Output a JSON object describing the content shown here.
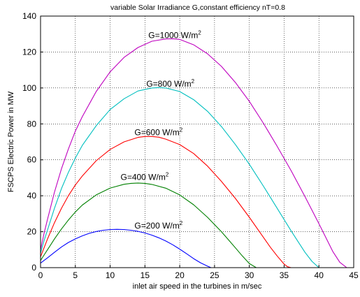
{
  "chart_data": {
    "type": "line",
    "title": "variable Solar Irradiance G,constant efficiency nT=0.8",
    "xlabel": "inlet air speed in the turbines in m/sec",
    "ylabel": "FSCPS Electric Power in MW",
    "xlim": [
      0,
      45
    ],
    "ylim": [
      0,
      140
    ],
    "xticks": [
      0,
      5,
      10,
      15,
      20,
      25,
      30,
      35,
      40,
      45
    ],
    "yticks": [
      0,
      20,
      40,
      60,
      80,
      100,
      120,
      140
    ],
    "xtick_labels": [
      "0",
      "5",
      "10",
      "15",
      "20",
      "25",
      "30",
      "35",
      "40",
      "45"
    ],
    "ytick_labels": [
      "0",
      "20",
      "40",
      "60",
      "80",
      "100",
      "120",
      "140"
    ],
    "grid": true,
    "legend": "none",
    "series": [
      {
        "label": "G=200 W/m",
        "label_sup": "2",
        "color": "#0000ff",
        "label_at": [
          13.5,
          21
        ],
        "x": [
          0,
          0.5,
          1,
          2,
          3,
          4,
          5,
          6,
          7,
          8,
          9,
          10,
          11,
          12,
          13,
          14,
          15,
          16,
          17,
          18,
          19,
          20,
          21,
          22,
          23,
          24,
          24.5
        ],
        "y": [
          2.5,
          4,
          5.5,
          8.5,
          11.5,
          14,
          16,
          17.7,
          19.1,
          20.1,
          20.8,
          21.2,
          21.3,
          21.2,
          20.8,
          20.2,
          19.3,
          18.1,
          16.6,
          14.8,
          12.7,
          10.3,
          7.7,
          5,
          2.7,
          0.8,
          0
        ]
      },
      {
        "label": "G=400 W/m",
        "label_sup": "2",
        "color": "#008000",
        "label_at": [
          11.5,
          48
        ],
        "x": [
          0,
          0.5,
          1,
          2,
          3,
          4,
          5,
          6,
          8,
          10,
          12,
          13,
          14,
          15,
          16,
          18,
          20,
          22,
          24,
          26,
          27,
          28,
          29,
          30,
          31
        ],
        "y": [
          4,
          7,
          10,
          16,
          21.5,
          26.5,
          31,
          34.8,
          40.5,
          44.3,
          46.4,
          46.9,
          47.1,
          46.9,
          46.3,
          44.2,
          40.5,
          35,
          28,
          20,
          15.5,
          11,
          6.5,
          2.3,
          0
        ]
      },
      {
        "label": "G=600 W/m",
        "label_sup": "2",
        "color": "#ff0000",
        "label_at": [
          13.5,
          73
        ],
        "x": [
          0,
          0.5,
          1,
          2,
          3,
          4,
          5,
          6,
          8,
          10,
          12,
          14,
          15,
          16,
          17,
          18,
          20,
          22,
          24,
          26,
          28,
          30,
          32,
          33,
          34,
          35,
          35.5,
          36
        ],
        "y": [
          6,
          11,
          16,
          25,
          33,
          40,
          46,
          51,
          59.5,
          65.8,
          70,
          72.5,
          73,
          73,
          72.6,
          71.5,
          68.5,
          63.5,
          56.5,
          48,
          38.5,
          28,
          17,
          11.5,
          6.5,
          2,
          0.5,
          0
        ]
      },
      {
        "label": "G=800 W/m",
        "label_sup": "2",
        "color": "#00bfbf",
        "label_at": [
          15.2,
          100
        ],
        "x": [
          0,
          0.5,
          1,
          2,
          3,
          4,
          5,
          6,
          8,
          10,
          12,
          14,
          16,
          17,
          18,
          20,
          22,
          24,
          26,
          28,
          30,
          32,
          34,
          36,
          38,
          39,
          40
        ],
        "y": [
          8,
          15,
          21,
          33,
          44,
          53,
          61,
          68,
          79,
          88,
          94,
          98.3,
          100,
          100.2,
          100,
          98,
          93.5,
          87,
          78.5,
          68.5,
          57.5,
          45.5,
          33,
          20.5,
          8.5,
          3.5,
          0
        ]
      },
      {
        "label": "G=1000 W/m",
        "label_sup": "2",
        "color": "#bf00bf",
        "label_at": [
          15.5,
          127
        ],
        "x": [
          0,
          0.5,
          1,
          2,
          3,
          4,
          5,
          6,
          8,
          10,
          12,
          14,
          16,
          18,
          19,
          20,
          22,
          24,
          26,
          28,
          30,
          32,
          34,
          36,
          38,
          40,
          42,
          43,
          44
        ],
        "y": [
          10,
          19,
          27,
          42,
          55,
          66,
          76,
          84,
          98,
          109,
          117,
          122.5,
          126,
          127.3,
          127.4,
          127,
          124,
          119,
          112,
          103,
          92.5,
          80.5,
          67.5,
          54,
          39.5,
          24.5,
          9,
          3,
          0
        ]
      }
    ]
  }
}
